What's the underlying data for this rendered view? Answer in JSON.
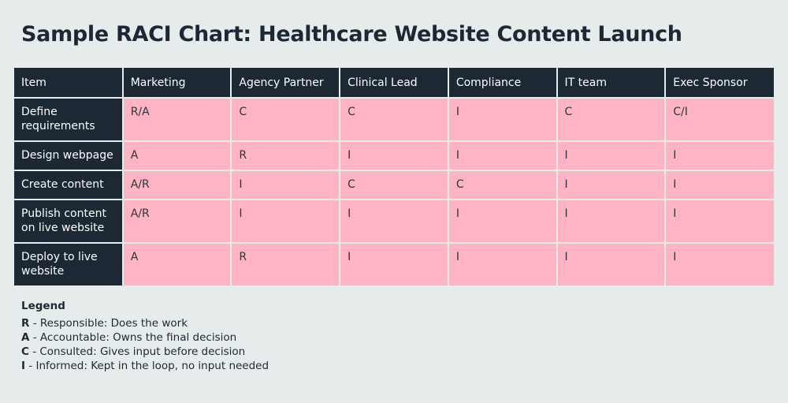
{
  "title": "Sample RACI Chart: Healthcare Website Content Launch",
  "chart_data": {
    "type": "table",
    "columns": [
      "Item",
      "Marketing",
      "Agency Partner",
      "Clinical Lead",
      "Compliance",
      "IT team",
      "Exec Sponsor"
    ],
    "rows": [
      {
        "item": "Define requirements",
        "values": [
          "R/A",
          "C",
          "C",
          "I",
          "C",
          "C/I"
        ]
      },
      {
        "item": "Design webpage",
        "values": [
          "A",
          "R",
          "I",
          "I",
          "I",
          "I"
        ]
      },
      {
        "item": "Create content",
        "values": [
          "A/R",
          "I",
          "C",
          "C",
          "I",
          "I"
        ]
      },
      {
        "item": "Publish content on live website",
        "values": [
          "A/R",
          "I",
          "I",
          "I",
          "I",
          "I"
        ]
      },
      {
        "item": "Deploy to live website",
        "values": [
          "A",
          "R",
          "I",
          "I",
          "I",
          "I"
        ]
      }
    ]
  },
  "legend": {
    "title": "Legend",
    "items": [
      {
        "letter": "R",
        "text": " - Responsible: Does the work"
      },
      {
        "letter": "A",
        "text": " - Accountable: Owns the final decision"
      },
      {
        "letter": "C",
        "text": " - Consulted: Gives input before decision"
      },
      {
        "letter": "I",
        "text": " - Informed: Kept in the loop, no input needed"
      }
    ]
  },
  "colors": {
    "header_bg": "#1c2833",
    "cell_bg": "#ffb3c3",
    "page_bg": "#e6ecec"
  }
}
